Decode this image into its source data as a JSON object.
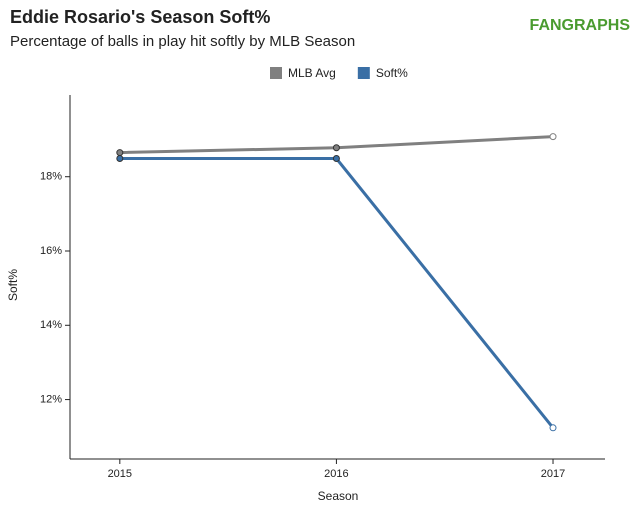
{
  "chart_data": {
    "type": "line",
    "title": "Eddie Rosario's Season Soft%",
    "subtitle": "Percentage of balls in play hit softly by MLB Season",
    "logo": "FANGRAPHS",
    "x_label": "Season",
    "y_label": "Soft%",
    "x": [
      2015,
      2016,
      2017
    ],
    "series": [
      {
        "name": "MLB Avg",
        "color": "#808080",
        "values": [
          18.65,
          18.78,
          19.08
        ]
      },
      {
        "name": "Soft%",
        "color": "#3a6fa5",
        "values": [
          18.49,
          18.49,
          11.24
        ]
      }
    ],
    "xlim": [
      2014.77,
      2017.24
    ],
    "xticks": [
      2015,
      2016,
      2017
    ],
    "ylim": [
      10.4,
      20.2
    ],
    "yticks": [
      {
        "value": 12,
        "label": "12%"
      },
      {
        "value": 14,
        "label": "14%"
      },
      {
        "value": 16,
        "label": "16%"
      },
      {
        "value": 18,
        "label": "18%"
      }
    ],
    "legend": "top"
  }
}
